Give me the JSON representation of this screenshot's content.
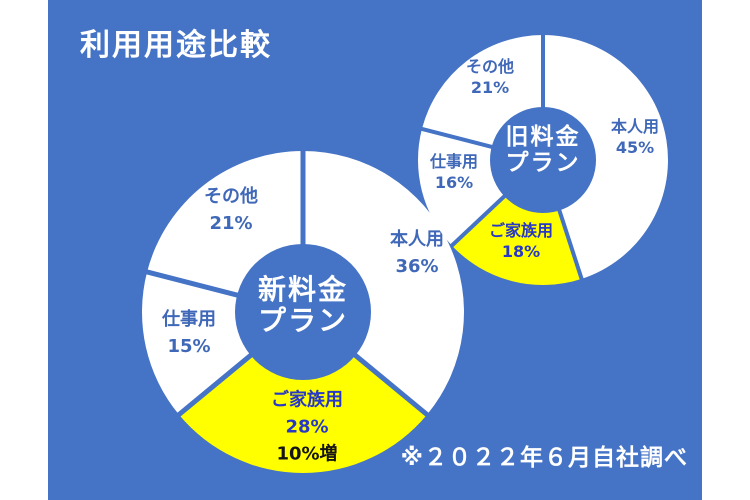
{
  "title": "利用用途比較",
  "footnote": "※２０２２年６月自社調べ",
  "colors": {
    "background": "#4573C5",
    "segment_default": "#FFFFFF",
    "segment_highlight": "#FFFF00",
    "label_blue": "#4068B8",
    "highlight_label_blue": "#2737C6",
    "note_black": "#141414",
    "center_text": "#FFFFFF"
  },
  "chart_data": [
    {
      "type": "pie",
      "title": "新料金プラン",
      "center_label_lines": [
        "新料金",
        "プラン"
      ],
      "labels": [
        "本人用",
        "ご家族用",
        "仕事用",
        "その他"
      ],
      "values": [
        36,
        28,
        15,
        21
      ],
      "pct_labels": [
        "36%",
        "28%",
        "15%",
        "21%"
      ],
      "notes": [
        "",
        "10%増",
        "",
        ""
      ],
      "highlight_index": 1,
      "start_angle_deg": 0,
      "direction": "clockwise",
      "donut": true
    },
    {
      "type": "pie",
      "title": "旧料金プラン",
      "center_label_lines": [
        "旧料金",
        "プラン"
      ],
      "labels": [
        "本人用",
        "ご家族用",
        "仕事用",
        "その他"
      ],
      "values": [
        45,
        18,
        16,
        21
      ],
      "pct_labels": [
        "45%",
        "18%",
        "16%",
        "21%"
      ],
      "notes": [
        "",
        "",
        "",
        ""
      ],
      "highlight_index": 1,
      "start_angle_deg": 0,
      "direction": "clockwise",
      "donut": true
    }
  ]
}
